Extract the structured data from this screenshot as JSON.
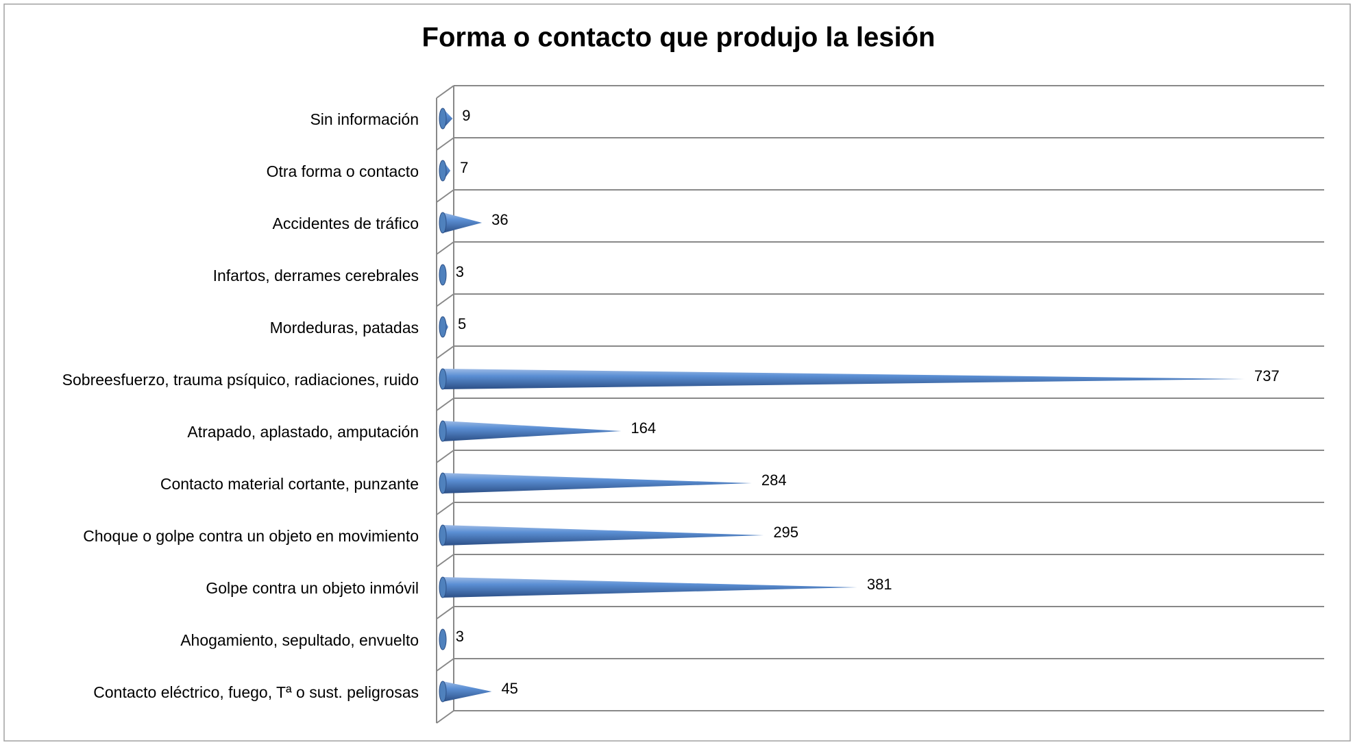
{
  "chart_data": {
    "type": "bar",
    "title": "Forma o contacto que produjo la lesión",
    "categories": [
      "Sin información",
      "Otra forma o contacto",
      "Accidentes de tráfico",
      "Infartos, derrames cerebrales",
      "Mordeduras, patadas",
      "Sobreesfuerzo, trauma psíquico, radiaciones, ruido",
      "Atrapado, aplastado, amputación",
      "Contacto material cortante, punzante",
      "Choque o golpe contra un objeto en movimiento",
      "Golpe contra un objeto inmóvil",
      "Ahogamiento, sepultado, envuelto",
      "Contacto eléctrico, fuego, Tª o sust. peligrosas"
    ],
    "values": [
      9,
      7,
      36,
      3,
      5,
      737,
      164,
      284,
      295,
      381,
      3,
      45
    ],
    "color": "#4f81bd",
    "xlim": [
      0,
      800
    ],
    "grid": true
  }
}
